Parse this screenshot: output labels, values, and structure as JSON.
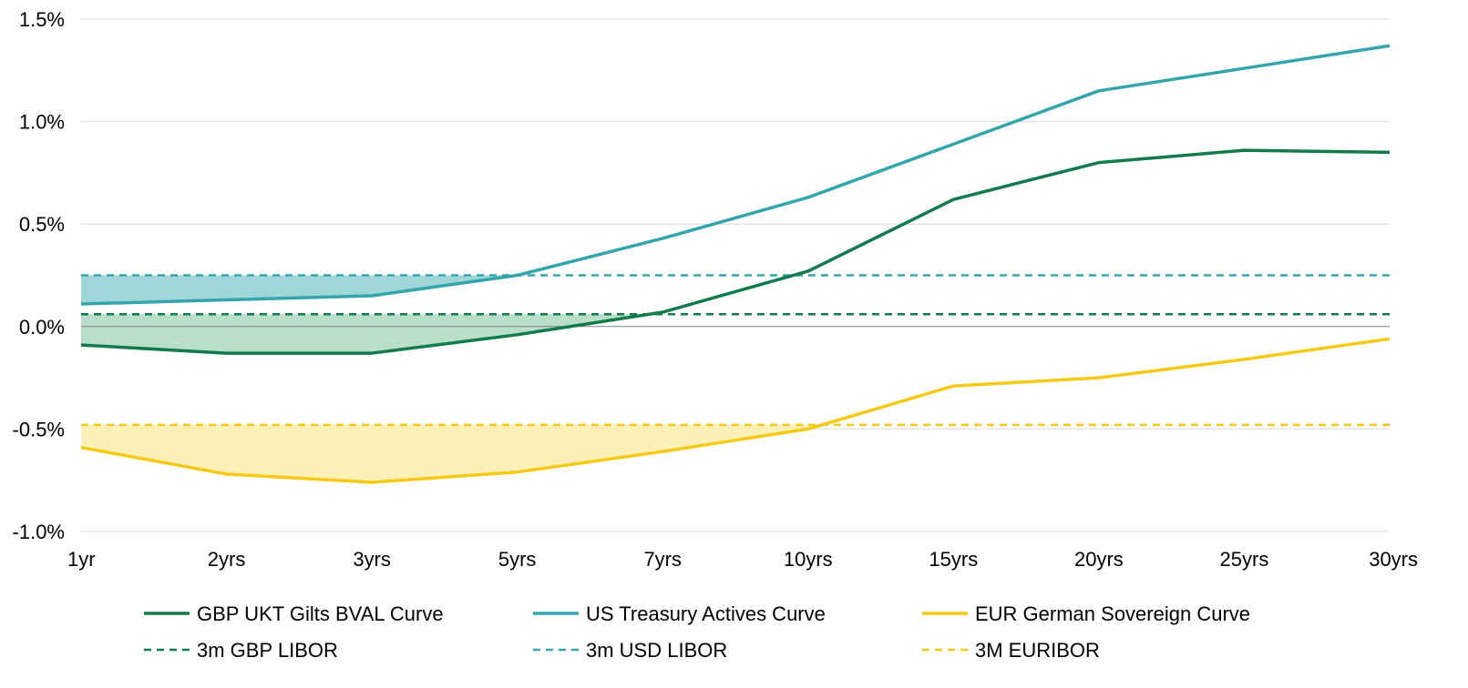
{
  "chart_data": {
    "type": "line",
    "title": "",
    "xlabel": "",
    "ylabel": "",
    "categories": [
      "1yr",
      "2yrs",
      "3yrs",
      "5yrs",
      "7yrs",
      "10yrs",
      "15yrs",
      "20yrs",
      "25yrs",
      "30yrs"
    ],
    "ylim": [
      -1.0,
      1.5
    ],
    "yticks": [
      1.5,
      1.0,
      0.5,
      0.0,
      -0.5,
      -1.0
    ],
    "ytick_labels": [
      "1.5%",
      "1.0%",
      "0.5%",
      "0.0%",
      "-0.5%",
      "-1.0%"
    ],
    "grid": true,
    "legend_position": "bottom",
    "series": [
      {
        "name": "GBP UKT Gilts BVAL Curve",
        "color": "#127a4d",
        "style": "solid",
        "values": [
          -0.09,
          -0.13,
          -0.13,
          -0.04,
          0.07,
          0.27,
          0.62,
          0.8,
          0.86,
          0.85
        ]
      },
      {
        "name": "US Treasury Actives Curve",
        "color": "#34a5ad",
        "style": "solid",
        "values": [
          0.11,
          0.13,
          0.15,
          0.25,
          0.43,
          0.63,
          0.89,
          1.15,
          1.26,
          1.37
        ]
      },
      {
        "name": "EUR German Sovereign Curve",
        "color": "#f4c918",
        "style": "solid",
        "values": [
          -0.59,
          -0.72,
          -0.76,
          -0.71,
          -0.61,
          -0.5,
          -0.29,
          -0.25,
          -0.16,
          -0.06
        ]
      },
      {
        "name": "3m GBP LIBOR",
        "color": "#127a4d",
        "style": "dashed",
        "constant": 0.06
      },
      {
        "name": "3m USD LIBOR",
        "color": "#34a5ad",
        "style": "dashed",
        "constant": 0.25
      },
      {
        "name": "3M EURIBOR",
        "color": "#f4c918",
        "style": "dashed",
        "constant": -0.48
      }
    ],
    "shaded_regions": [
      {
        "between": [
          "3m USD LIBOR",
          "US Treasury Actives Curve"
        ],
        "color": "#9fd6d8"
      },
      {
        "between": [
          "3m GBP LIBOR",
          "GBP UKT Gilts BVAL Curve"
        ],
        "color": "#b9dfcb"
      },
      {
        "between": [
          "3M EURIBOR",
          "EUR German Sovereign Curve"
        ],
        "color": "#fdf0b6"
      }
    ]
  }
}
